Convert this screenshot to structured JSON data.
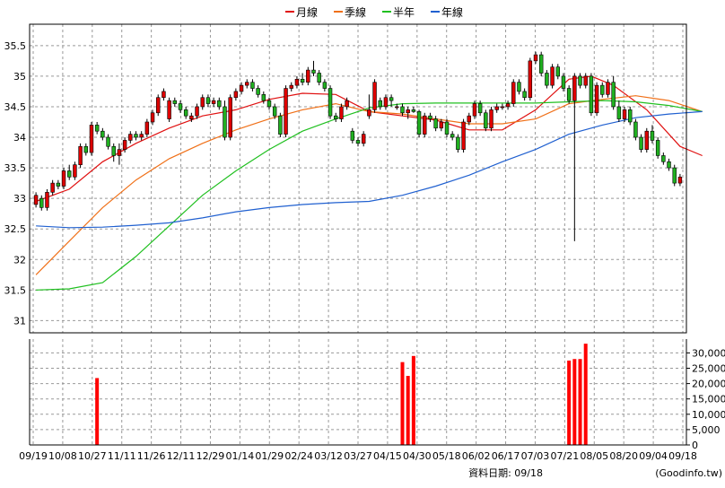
{
  "chart_data": {
    "type": "candlestick",
    "legend": {
      "placement": "top-center",
      "entries": [
        {
          "name": "月線",
          "color": "#e01010"
        },
        {
          "name": "季線",
          "color": "#f07018"
        },
        {
          "name": "半年",
          "color": "#20c020"
        },
        {
          "name": "年線",
          "color": "#2060d0"
        }
      ]
    },
    "x_tick_labels": [
      "09/19",
      "10/08",
      "10/27",
      "11/11",
      "11/26",
      "12/11",
      "12/29",
      "01/14",
      "01/29",
      "02/24",
      "03/12",
      "03/27",
      "04/15",
      "04/30",
      "05/18",
      "06/02",
      "06/17",
      "07/03",
      "07/21",
      "08/05",
      "08/20",
      "09/04",
      "09/18"
    ],
    "price_axis": {
      "ylim": [
        30.8,
        35.85
      ],
      "ticks": [
        31,
        31.5,
        32,
        32.5,
        33,
        33.5,
        34,
        34.5,
        35,
        35.5
      ]
    },
    "volume_axis": {
      "ylim": [
        0,
        34500
      ],
      "ticks": [
        0,
        5000,
        10000,
        15000,
        20000,
        25000,
        30000
      ],
      "tick_labels": [
        "0",
        "5,000",
        "10,000",
        "15,000",
        "20,000",
        "25,000",
        "30,000"
      ]
    },
    "grid": true,
    "colors": {
      "up": "#dd0000",
      "down": "#20b020",
      "volume": "#ff0000",
      "grid": "#999999",
      "frame": "#000000"
    },
    "candles": [
      [
        32.9,
        33.1,
        32.85,
        33.05
      ],
      [
        33.0,
        33.05,
        32.8,
        32.85
      ],
      [
        32.85,
        33.15,
        32.8,
        33.1
      ],
      [
        33.1,
        33.3,
        33.05,
        33.25
      ],
      [
        33.25,
        33.3,
        33.15,
        33.2
      ],
      [
        33.2,
        33.5,
        33.15,
        33.45
      ],
      [
        33.45,
        33.55,
        33.3,
        33.35
      ],
      [
        33.35,
        33.6,
        33.3,
        33.55
      ],
      [
        33.55,
        33.9,
        33.5,
        33.85
      ],
      [
        33.85,
        33.9,
        33.7,
        33.75
      ],
      [
        33.75,
        34.25,
        33.7,
        34.2
      ],
      [
        34.2,
        34.25,
        34.05,
        34.1
      ],
      [
        34.1,
        34.15,
        33.95,
        34.0
      ],
      [
        34.0,
        34.05,
        33.8,
        33.85
      ],
      [
        33.85,
        33.9,
        33.6,
        33.7
      ],
      [
        33.7,
        33.9,
        33.55,
        33.8
      ],
      [
        33.8,
        34.0,
        33.75,
        33.95
      ],
      [
        33.95,
        34.1,
        33.9,
        34.05
      ],
      [
        34.05,
        34.1,
        33.95,
        34.0
      ],
      [
        34.0,
        34.1,
        33.95,
        34.05
      ],
      [
        34.05,
        34.3,
        34.0,
        34.25
      ],
      [
        34.25,
        34.45,
        34.2,
        34.4
      ],
      [
        34.4,
        34.7,
        34.35,
        34.65
      ],
      [
        34.65,
        34.8,
        34.6,
        34.75
      ],
      [
        34.3,
        34.65,
        34.25,
        34.6
      ],
      [
        34.6,
        34.65,
        34.5,
        34.55
      ],
      [
        34.55,
        34.6,
        34.4,
        34.45
      ],
      [
        34.45,
        34.5,
        34.3,
        34.35
      ],
      [
        34.3,
        34.4,
        34.25,
        34.35
      ],
      [
        34.35,
        34.55,
        34.3,
        34.5
      ],
      [
        34.5,
        34.7,
        34.45,
        34.65
      ],
      [
        34.65,
        34.7,
        34.5,
        34.55
      ],
      [
        34.55,
        34.65,
        34.5,
        34.6
      ],
      [
        34.6,
        34.65,
        34.45,
        34.5
      ],
      [
        34.5,
        34.6,
        33.95,
        34.0
      ],
      [
        34.0,
        34.7,
        33.95,
        34.65
      ],
      [
        34.65,
        34.8,
        34.6,
        34.75
      ],
      [
        34.75,
        34.9,
        34.7,
        34.85
      ],
      [
        34.85,
        34.95,
        34.8,
        34.9
      ],
      [
        34.9,
        34.95,
        34.75,
        34.8
      ],
      [
        34.8,
        34.85,
        34.65,
        34.7
      ],
      [
        34.7,
        34.75,
        34.55,
        34.6
      ],
      [
        34.6,
        34.65,
        34.45,
        34.5
      ],
      [
        34.5,
        34.55,
        34.3,
        34.35
      ],
      [
        34.35,
        34.4,
        34.0,
        34.05
      ],
      [
        34.05,
        34.85,
        34.0,
        34.8
      ],
      [
        34.8,
        34.9,
        34.75,
        34.85
      ],
      [
        34.85,
        35.0,
        34.8,
        34.95
      ],
      [
        34.95,
        35.05,
        34.85,
        34.9
      ],
      [
        34.9,
        35.15,
        34.85,
        35.1
      ],
      [
        35.1,
        35.25,
        35.0,
        35.05
      ],
      [
        35.05,
        35.1,
        34.85,
        34.9
      ],
      [
        34.9,
        34.95,
        34.75,
        34.8
      ],
      [
        34.8,
        34.85,
        34.3,
        34.35
      ],
      [
        34.35,
        34.4,
        34.25,
        34.3
      ],
      [
        34.3,
        34.55,
        34.25,
        34.5
      ],
      [
        34.5,
        34.65,
        34.45,
        34.6
      ],
      [
        34.1,
        34.15,
        33.9,
        33.95
      ],
      [
        33.95,
        34.0,
        33.85,
        33.9
      ],
      [
        33.9,
        34.1,
        33.85,
        34.05
      ],
      [
        34.35,
        34.7,
        34.3,
        34.45
      ],
      [
        34.45,
        34.95,
        34.4,
        34.9
      ],
      [
        34.6,
        34.65,
        34.45,
        34.5
      ],
      [
        34.5,
        34.7,
        34.45,
        34.65
      ],
      [
        34.65,
        34.7,
        34.5,
        34.6
      ],
      [
        34.5,
        34.55,
        34.45,
        34.5
      ],
      [
        34.5,
        34.55,
        34.35,
        34.4
      ],
      [
        34.4,
        34.5,
        34.3,
        34.45
      ],
      [
        34.45,
        34.5,
        34.4,
        34.42
      ],
      [
        34.42,
        34.45,
        34.0,
        34.05
      ],
      [
        34.05,
        34.4,
        34.0,
        34.35
      ],
      [
        34.35,
        34.4,
        34.25,
        34.3
      ],
      [
        34.3,
        34.35,
        34.1,
        34.15
      ],
      [
        34.15,
        34.3,
        34.1,
        34.25
      ],
      [
        34.25,
        34.3,
        34.0,
        34.05
      ],
      [
        34.05,
        34.1,
        33.95,
        34.0
      ],
      [
        34.0,
        34.05,
        33.75,
        33.8
      ],
      [
        33.8,
        34.3,
        33.75,
        34.25
      ],
      [
        34.25,
        34.4,
        34.2,
        34.35
      ],
      [
        34.35,
        34.6,
        34.3,
        34.55
      ],
      [
        34.55,
        34.6,
        34.35,
        34.4
      ],
      [
        34.4,
        34.45,
        34.1,
        34.15
      ],
      [
        34.15,
        34.5,
        34.1,
        34.45
      ],
      [
        34.45,
        34.55,
        34.4,
        34.5
      ],
      [
        34.5,
        34.55,
        34.45,
        34.5
      ],
      [
        34.5,
        34.6,
        34.45,
        34.55
      ],
      [
        34.55,
        34.95,
        34.5,
        34.9
      ],
      [
        34.9,
        34.95,
        34.7,
        34.75
      ],
      [
        34.75,
        34.8,
        34.6,
        34.65
      ],
      [
        34.65,
        35.3,
        34.6,
        35.25
      ],
      [
        35.25,
        35.4,
        35.2,
        35.35
      ],
      [
        35.35,
        35.4,
        35.0,
        35.05
      ],
      [
        35.05,
        35.1,
        34.8,
        34.85
      ],
      [
        34.85,
        35.2,
        34.8,
        35.15
      ],
      [
        35.15,
        35.2,
        34.95,
        35.0
      ],
      [
        35.0,
        35.05,
        34.75,
        34.8
      ],
      [
        34.8,
        34.85,
        34.55,
        34.6
      ],
      [
        34.6,
        35.05,
        32.3,
        35.0
      ],
      [
        35.0,
        35.05,
        34.8,
        34.85
      ],
      [
        34.85,
        35.05,
        34.8,
        35.0
      ],
      [
        35.0,
        35.05,
        34.35,
        34.4
      ],
      [
        34.4,
        34.9,
        34.35,
        34.85
      ],
      [
        34.85,
        34.9,
        34.65,
        34.7
      ],
      [
        34.7,
        34.95,
        34.65,
        34.9
      ],
      [
        34.9,
        35.0,
        34.45,
        34.5
      ],
      [
        34.5,
        34.6,
        34.25,
        34.3
      ],
      [
        34.3,
        34.5,
        34.25,
        34.45
      ],
      [
        34.45,
        34.5,
        34.2,
        34.25
      ],
      [
        34.25,
        34.3,
        33.95,
        34.0
      ],
      [
        34.0,
        34.05,
        33.75,
        33.8
      ],
      [
        33.8,
        34.15,
        33.75,
        34.1
      ],
      [
        34.1,
        34.2,
        33.9,
        33.95
      ],
      [
        33.95,
        34.0,
        33.65,
        33.7
      ],
      [
        33.7,
        33.75,
        33.55,
        33.6
      ],
      [
        33.6,
        33.65,
        33.45,
        33.5
      ],
      [
        33.5,
        33.55,
        33.2,
        33.25
      ],
      [
        33.25,
        33.4,
        33.2,
        33.35
      ]
    ],
    "ma_lines": [
      {
        "name": "月線",
        "color": "#e01010",
        "values": [
          [
            0,
            32.95
          ],
          [
            6,
            33.15
          ],
          [
            12,
            33.6
          ],
          [
            18,
            33.9
          ],
          [
            24,
            34.15
          ],
          [
            30,
            34.35
          ],
          [
            36,
            34.45
          ],
          [
            42,
            34.62
          ],
          [
            48,
            34.72
          ],
          [
            54,
            34.7
          ],
          [
            60,
            34.42
          ],
          [
            66,
            34.35
          ],
          [
            72,
            34.28
          ],
          [
            78,
            34.12
          ],
          [
            84,
            34.12
          ],
          [
            90,
            34.45
          ],
          [
            96,
            34.95
          ],
          [
            100,
            35.0
          ],
          [
            104,
            34.85
          ],
          [
            110,
            34.45
          ],
          [
            116,
            33.85
          ],
          [
            120,
            33.7
          ]
        ]
      },
      {
        "name": "季線",
        "color": "#f07018",
        "values": [
          [
            0,
            31.75
          ],
          [
            6,
            32.3
          ],
          [
            12,
            32.85
          ],
          [
            18,
            33.3
          ],
          [
            24,
            33.65
          ],
          [
            30,
            33.9
          ],
          [
            36,
            34.12
          ],
          [
            42,
            34.3
          ],
          [
            48,
            34.45
          ],
          [
            54,
            34.55
          ],
          [
            60,
            34.42
          ],
          [
            66,
            34.38
          ],
          [
            72,
            34.3
          ],
          [
            78,
            34.22
          ],
          [
            84,
            34.22
          ],
          [
            90,
            34.3
          ],
          [
            96,
            34.55
          ],
          [
            102,
            34.62
          ],
          [
            108,
            34.68
          ],
          [
            114,
            34.6
          ],
          [
            120,
            34.42
          ]
        ]
      },
      {
        "name": "半年",
        "color": "#20c020",
        "values": [
          [
            0,
            31.5
          ],
          [
            6,
            31.52
          ],
          [
            12,
            31.62
          ],
          [
            18,
            32.05
          ],
          [
            24,
            32.55
          ],
          [
            30,
            33.05
          ],
          [
            36,
            33.45
          ],
          [
            42,
            33.8
          ],
          [
            48,
            34.1
          ],
          [
            54,
            34.3
          ],
          [
            60,
            34.48
          ],
          [
            66,
            34.55
          ],
          [
            72,
            34.56
          ],
          [
            78,
            34.56
          ],
          [
            84,
            34.56
          ],
          [
            90,
            34.56
          ],
          [
            96,
            34.58
          ],
          [
            102,
            34.6
          ],
          [
            108,
            34.58
          ],
          [
            114,
            34.52
          ],
          [
            120,
            34.42
          ]
        ]
      },
      {
        "name": "年線",
        "color": "#2060d0",
        "values": [
          [
            0,
            32.55
          ],
          [
            6,
            32.52
          ],
          [
            12,
            32.53
          ],
          [
            18,
            32.56
          ],
          [
            24,
            32.6
          ],
          [
            30,
            32.68
          ],
          [
            36,
            32.78
          ],
          [
            42,
            32.85
          ],
          [
            48,
            32.9
          ],
          [
            54,
            32.93
          ],
          [
            60,
            32.95
          ],
          [
            66,
            33.05
          ],
          [
            72,
            33.2
          ],
          [
            78,
            33.38
          ],
          [
            84,
            33.6
          ],
          [
            90,
            33.8
          ],
          [
            96,
            34.05
          ],
          [
            102,
            34.2
          ],
          [
            108,
            34.32
          ],
          [
            114,
            34.38
          ],
          [
            120,
            34.42
          ]
        ]
      }
    ],
    "volume_bars": [
      {
        "index": 11,
        "value": 21800
      },
      {
        "index": 66,
        "value": 27000
      },
      {
        "index": 67,
        "value": 22500
      },
      {
        "index": 68,
        "value": 29000
      },
      {
        "index": 96,
        "value": 27500
      },
      {
        "index": 97,
        "value": 28000
      },
      {
        "index": 98,
        "value": 28000
      },
      {
        "index": 99,
        "value": 33000
      }
    ]
  },
  "footer": {
    "label": "資料日期: 09/18",
    "source": "(Goodinfo.tw)"
  }
}
